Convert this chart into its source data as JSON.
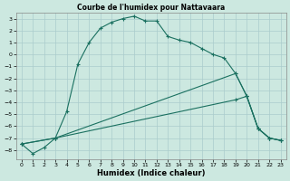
{
  "title": "Courbe de l'humidex pour Nattavaara",
  "xlabel": "Humidex (Indice chaleur)",
  "bg_color": "#cce8e0",
  "line_color": "#1a7060",
  "grid_color": "#aacccc",
  "ylim": [
    -8.8,
    3.5
  ],
  "xlim": [
    -0.5,
    23.5
  ],
  "yticks": [
    -8,
    -7,
    -6,
    -5,
    -4,
    -3,
    -2,
    -1,
    0,
    1,
    2,
    3
  ],
  "xticks": [
    0,
    1,
    2,
    3,
    4,
    5,
    6,
    7,
    8,
    9,
    10,
    11,
    12,
    13,
    14,
    15,
    16,
    17,
    18,
    19,
    20,
    21,
    22,
    23
  ],
  "curve1_x": [
    0,
    1,
    2,
    3,
    4,
    5,
    6,
    7,
    8,
    9,
    10,
    11,
    12,
    13,
    14,
    15,
    16,
    17,
    18,
    19,
    20,
    21,
    22,
    23
  ],
  "curve1_y": [
    -7.5,
    -8.3,
    -7.8,
    -7.0,
    -4.8,
    -0.8,
    1.0,
    2.2,
    2.7,
    3.0,
    3.2,
    2.8,
    2.8,
    1.5,
    1.2,
    1.0,
    0.5,
    0.0,
    -0.3,
    -1.6,
    -3.5,
    -6.2,
    -7.0,
    -7.2
  ],
  "curve2_x": [
    0,
    3,
    19,
    20,
    21,
    22,
    23
  ],
  "curve2_y": [
    -7.5,
    -7.0,
    -1.6,
    -3.5,
    -6.2,
    -7.0,
    -7.2
  ],
  "curve3_x": [
    0,
    3,
    19,
    20,
    21,
    22,
    23
  ],
  "curve3_y": [
    -7.5,
    -7.0,
    -3.8,
    -3.5,
    -6.2,
    -7.0,
    -7.2
  ],
  "title_fontsize": 5.5,
  "xlabel_fontsize": 6.0,
  "tick_fontsize": 4.5
}
